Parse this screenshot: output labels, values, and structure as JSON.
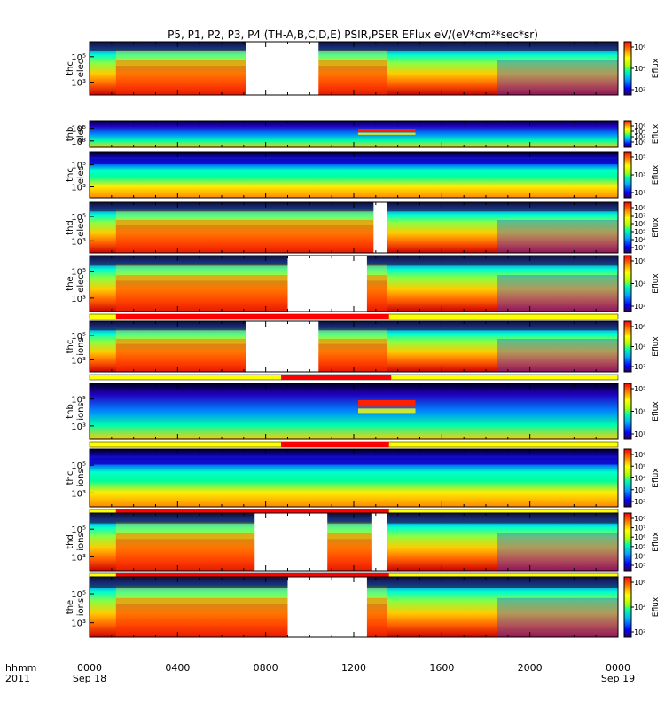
{
  "chart_data": {
    "type": "heatmap",
    "title": "P5, P1, P2, P3, P4 (TH-A,B,C,D,E) PSIR,PSER EFlux eV/(eV*cm²*sec*sr)",
    "x_axis_prefix": [
      "hhmm",
      "2011"
    ],
    "x_ticks": [
      {
        "label": "0000",
        "date": "Sep 18",
        "hour": 0
      },
      {
        "label": "0400",
        "date": "",
        "hour": 4
      },
      {
        "label": "0800",
        "date": "",
        "hour": 8
      },
      {
        "label": "1200",
        "date": "",
        "hour": 12
      },
      {
        "label": "1600",
        "date": "",
        "hour": 16
      },
      {
        "label": "2000",
        "date": "",
        "hour": 20
      },
      {
        "label": "0000",
        "date": "Sep 19",
        "hour": 24
      }
    ],
    "xlim_hours": [
      0,
      24
    ],
    "colorbar_label": "Eflux",
    "panels": [
      {
        "name": "thc elec",
        "ylabel": [
          "thc",
          "elec"
        ],
        "yticks": [
          "10⁵",
          "10³"
        ],
        "cbar_ticks": [
          "10⁶",
          "10⁴",
          "10²"
        ],
        "gaps_hours": [
          [
            7.1,
            10.4
          ]
        ],
        "state_bar": []
      },
      {
        "name": "thb elec",
        "ylabel": [
          "thb",
          "elec"
        ],
        "yticks": [
          "10⁵",
          "10³"
        ],
        "cbar_ticks": [
          "10⁶",
          "10⁴",
          "10²",
          "10⁰"
        ],
        "gaps_hours": [],
        "state_bar": []
      },
      {
        "name": "thc elec",
        "ylabel": [
          "thc",
          "elec"
        ],
        "yticks": [
          "10⁵",
          "10³"
        ],
        "cbar_ticks": [
          "10⁵",
          "10³",
          "10¹"
        ],
        "gaps_hours": [],
        "state_bar": []
      },
      {
        "name": "thd elec",
        "ylabel": [
          "thd",
          "elec"
        ],
        "yticks": [
          "10⁵",
          "10³"
        ],
        "cbar_ticks": [
          "10⁸",
          "10⁷",
          "10⁶",
          "10⁵",
          "10⁴",
          "10³"
        ],
        "gaps_hours": [
          [
            12.9,
            13.5
          ]
        ],
        "state_bar": []
      },
      {
        "name": "the elec",
        "ylabel": [
          "the",
          "elec"
        ],
        "yticks": [
          "10⁵",
          "10³"
        ],
        "cbar_ticks": [
          "10⁶",
          "10⁴",
          "10²"
        ],
        "gaps_hours": [
          [
            9.0,
            12.6
          ]
        ],
        "state_bar": [
          1.2,
          13.6
        ]
      },
      {
        "name": "thc ions",
        "ylabel": [
          "thc",
          "ions"
        ],
        "yticks": [
          "10⁵",
          "10³"
        ],
        "cbar_ticks": [
          "10⁶",
          "10⁴",
          "10²"
        ],
        "gaps_hours": [
          [
            7.1,
            10.4
          ]
        ],
        "state_bar": [
          8.7,
          13.7
        ]
      },
      {
        "name": "thb ions",
        "ylabel": [
          "thb",
          "ions"
        ],
        "yticks": [
          "10⁵",
          "10³"
        ],
        "cbar_ticks": [
          "10⁵",
          "10³",
          "10¹"
        ],
        "gaps_hours": [],
        "state_bar": [
          8.7,
          13.6
        ]
      },
      {
        "name": "thc ions",
        "ylabel": [
          "thc",
          "ions"
        ],
        "yticks": [
          "10⁵",
          "10³"
        ],
        "cbar_ticks": [
          "10⁶",
          "10⁵",
          "10⁴",
          "10³",
          "10²"
        ],
        "gaps_hours": [],
        "state_bar": [
          1.2,
          13.6
        ]
      },
      {
        "name": "thd ions",
        "ylabel": [
          "thd",
          "ions"
        ],
        "yticks": [
          "10⁵",
          "10³"
        ],
        "cbar_ticks": [
          "10⁸",
          "10⁷",
          "10⁶",
          "10⁵",
          "10⁴",
          "10³"
        ],
        "gaps_hours": [
          [
            7.5,
            10.8
          ],
          [
            12.8,
            13.5
          ]
        ],
        "state_bar": [
          1.2,
          13.6
        ]
      },
      {
        "name": "the ions",
        "ylabel": [
          "the",
          "ions"
        ],
        "yticks": [
          "10⁵",
          "10³"
        ],
        "cbar_ticks": [
          "10⁶",
          "10⁴",
          "10²"
        ],
        "gaps_hours": [
          [
            9.0,
            12.6
          ]
        ],
        "state_bar": []
      }
    ]
  }
}
